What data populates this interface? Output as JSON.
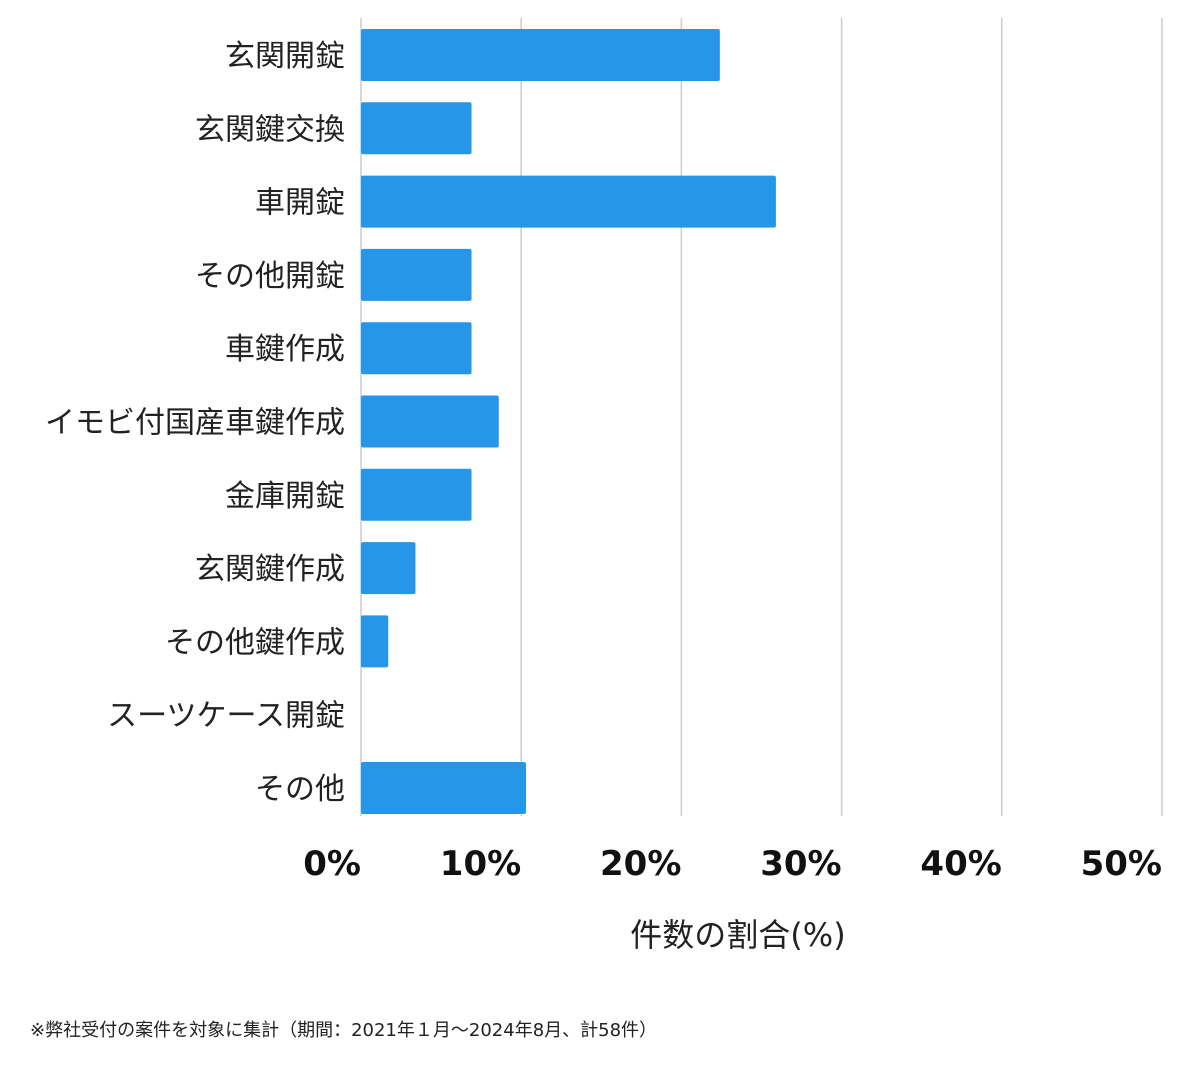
{
  "chart_data": {
    "type": "bar",
    "orientation": "horizontal",
    "categories": [
      "玄関開錠",
      "玄関鍵交換",
      "車開錠",
      "その他開錠",
      "車鍵作成",
      "イモビ付国産車鍵作成",
      "金庫開錠",
      "玄関鍵作成",
      "その他鍵作成",
      "スーツケース開錠",
      "その他"
    ],
    "values": [
      22.4,
      6.9,
      25.9,
      6.9,
      6.9,
      8.6,
      6.9,
      3.4,
      1.7,
      0,
      10.3
    ],
    "xticks": [
      0,
      10,
      20,
      30,
      40,
      50
    ],
    "tick_labels": [
      "0%",
      "10%",
      "20%",
      "30%",
      "40%",
      "50%"
    ],
    "xlim": [
      0,
      50
    ],
    "xlabel": "件数の割合(%)",
    "grid": "vertical",
    "bar_color": "#2696e8",
    "grid_color": "#cccccc"
  },
  "footnote": "※弊社受付の案件を対象に集計（期間：2021年１月〜2024年8月、計58件）"
}
